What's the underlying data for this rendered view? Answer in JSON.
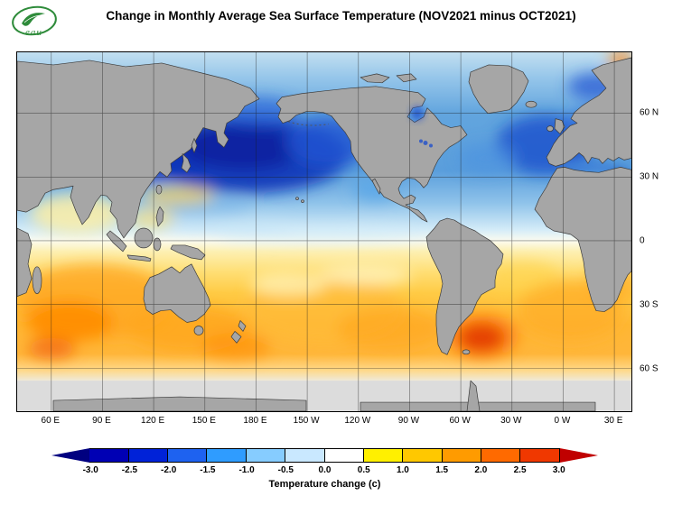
{
  "title": "Change in Monthly Average Sea Surface Temperature (NOV2021 minus OCT2021)",
  "logo": {
    "text": "eau",
    "color": "#2e8b3a"
  },
  "map": {
    "lat_labels": [
      "60 N",
      "30 N",
      "0",
      "30 S",
      "60 S"
    ],
    "lon_labels": [
      "60 E",
      "90 E",
      "120 E",
      "150 E",
      "180 E",
      "150 W",
      "120 W",
      "90 W",
      "60 W",
      "30 W",
      "0 W",
      "30 E"
    ],
    "land_color": "#a6a6a6",
    "no_data_color": "#dcdcdc"
  },
  "colorbar": {
    "label": "Temperature change  (c)",
    "ticks": [
      "-3.0",
      "-2.5",
      "-2.0",
      "-1.5",
      "-1.0",
      "-0.5",
      "0.0",
      "0.5",
      "1.0",
      "1.5",
      "2.0",
      "2.5",
      "3.0"
    ],
    "cells": [
      {
        "color": "#000080",
        "shape": "arrow-left"
      },
      {
        "color": "#0000b4",
        "shape": "seg"
      },
      {
        "color": "#0022d8",
        "shape": "seg"
      },
      {
        "color": "#1e62f0",
        "shape": "seg"
      },
      {
        "color": "#2f9cff",
        "shape": "seg"
      },
      {
        "color": "#86ccff",
        "shape": "seg"
      },
      {
        "color": "#c9e8ff",
        "shape": "seg"
      },
      {
        "color": "#ffffff",
        "shape": "seg"
      },
      {
        "color": "#fff000",
        "shape": "seg"
      },
      {
        "color": "#ffc800",
        "shape": "seg"
      },
      {
        "color": "#ff9b00",
        "shape": "seg"
      },
      {
        "color": "#ff6a00",
        "shape": "seg"
      },
      {
        "color": "#f03800",
        "shape": "seg"
      },
      {
        "color": "#c00000",
        "shape": "arrow-right"
      }
    ]
  },
  "chart_data": {
    "type": "heatmap",
    "title": "Change in Monthly Average Sea Surface Temperature (NOV2021 minus OCT2021)",
    "colorbar_label": "Temperature change (c)",
    "units": "C",
    "value_range": [
      -3.0,
      3.0
    ],
    "palette_ticks": [
      -3.0,
      -2.5,
      -2.0,
      -1.5,
      -1.0,
      -0.5,
      0.0,
      0.5,
      1.0,
      1.5,
      2.0,
      2.5,
      3.0
    ],
    "lat_ticks": [
      "60 N",
      "30 N",
      "0",
      "30 S",
      "60 S"
    ],
    "lon_ticks": [
      "60 E",
      "90 E",
      "120 E",
      "150 E",
      "180 E",
      "150 W",
      "120 W",
      "90 W",
      "60 W",
      "30 W",
      "0 W",
      "30 E"
    ],
    "regions": [
      {
        "region": "North Pacific",
        "approx_change_c": -2.5
      },
      {
        "region": "Northwest Pacific / Sea of Okhotsk",
        "approx_change_c": -2.0
      },
      {
        "region": "Bering Sea",
        "approx_change_c": -1.5
      },
      {
        "region": "North Atlantic",
        "approx_change_c": -1.5
      },
      {
        "region": "Hudson Bay",
        "approx_change_c": -2.0
      },
      {
        "region": "Mediterranean Sea",
        "approx_change_c": -1.0
      },
      {
        "region": "Eastern North Atlantic off Africa",
        "approx_change_c": -2.0
      },
      {
        "region": "Equatorial Pacific",
        "approx_change_c": -0.3
      },
      {
        "region": "Arabian Sea / Bay of Bengal",
        "approx_change_c": 0.3
      },
      {
        "region": "South Indian Ocean",
        "approx_change_c": 1.5
      },
      {
        "region": "South of Australia",
        "approx_change_c": 1.2
      },
      {
        "region": "South Pacific",
        "approx_change_c": 1.0
      },
      {
        "region": "South Atlantic",
        "approx_change_c": 1.0
      },
      {
        "region": "Southwest Atlantic east of Argentina",
        "approx_change_c": 2.5
      },
      {
        "region": "Southern Ocean south of 60 S",
        "approx_change_c": "no data"
      }
    ]
  }
}
